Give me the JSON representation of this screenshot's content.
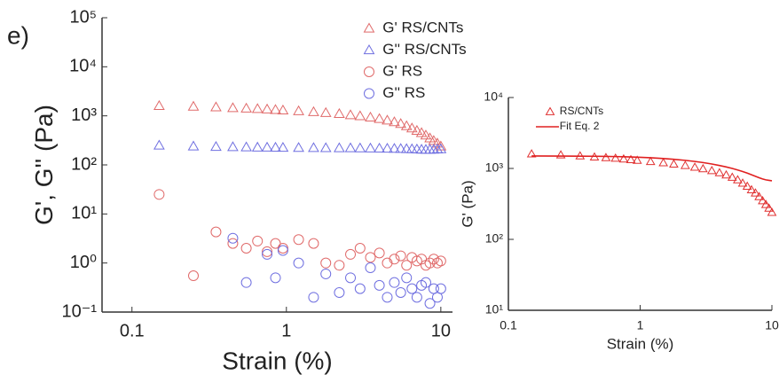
{
  "chart_data": [
    {
      "type": "scatter",
      "annotation": "e)",
      "xlabel": "Strain (%)",
      "ylabel": "G', G'' (Pa)",
      "xlog": true,
      "ylog": true,
      "xlim": [
        0.064,
        11.9
      ],
      "ylim": [
        0.1,
        100000
      ],
      "xticks": [
        0.1,
        1,
        10
      ],
      "yticks": [
        {
          "value": 0.1,
          "label": "10⁻¹"
        },
        {
          "value": 1,
          "label": "10⁰"
        },
        {
          "value": 10,
          "label": "10¹"
        },
        {
          "value": 100,
          "label": "10²"
        },
        {
          "value": 1000,
          "label": "10³"
        },
        {
          "value": 10000,
          "label": "10⁴"
        },
        {
          "value": 100000,
          "label": "10⁵"
        }
      ],
      "legend": "upper right",
      "x": [
        0.15,
        0.25,
        0.35,
        0.45,
        0.55,
        0.65,
        0.75,
        0.85,
        0.95,
        1.2,
        1.5,
        1.8,
        2.2,
        2.6,
        3,
        3.5,
        4,
        4.5,
        5,
        5.5,
        6,
        6.5,
        7,
        7.5,
        8,
        8.5,
        9,
        9.5,
        10
      ],
      "series": [
        {
          "name": "G' RS/CNTs",
          "color": "#e06a6a",
          "marker": "triangle",
          "values": [
            1600,
            1550,
            1500,
            1450,
            1420,
            1390,
            1360,
            1330,
            1300,
            1250,
            1200,
            1150,
            1100,
            1040,
            990,
            930,
            870,
            810,
            750,
            690,
            620,
            560,
            500,
            450,
            400,
            350,
            310,
            275,
            240
          ]
        },
        {
          "name": "G'' RS/CNTs",
          "color": "#6f6fe0",
          "marker": "triangle",
          "values": [
            250,
            240,
            235,
            232,
            230,
            228,
            227,
            226,
            225,
            224,
            223,
            222,
            221,
            220,
            219,
            218,
            217,
            216,
            215,
            214,
            212,
            210,
            208,
            206,
            205,
            205,
            206,
            208,
            210
          ]
        },
        {
          "name": "G' RS",
          "color": "#e06a6a",
          "marker": "circle",
          "values": [
            25,
            0.55,
            4.3,
            2.5,
            2,
            2.8,
            1.7,
            2.5,
            2,
            3,
            2.5,
            1,
            0.9,
            1.5,
            2,
            1.3,
            1.6,
            1,
            1.2,
            1.4,
            0.9,
            1.3,
            1.1,
            1.2,
            0.9,
            1,
            1.2,
            1,
            1.1
          ]
        },
        {
          "name": "G'' RS",
          "color": "#6f6fe0",
          "marker": "circle",
          "values": [
            null,
            null,
            null,
            3.2,
            0.4,
            null,
            1.5,
            0.5,
            1.8,
            1,
            0.2,
            0.6,
            0.25,
            0.5,
            0.3,
            0.8,
            0.35,
            0.2,
            0.4,
            0.25,
            0.5,
            0.3,
            0.2,
            0.35,
            0.4,
            0.15,
            0.3,
            0.2,
            0.3
          ]
        }
      ]
    },
    {
      "type": "scatter",
      "xlabel": "Strain (%)",
      "ylabel": "G' (Pa)",
      "xlog": true,
      "ylog": true,
      "xlim": [
        0.1,
        10
      ],
      "ylim": [
        10,
        10000
      ],
      "xticks": [
        0.1,
        1,
        10
      ],
      "yticks": [
        {
          "value": 10,
          "label": "10¹"
        },
        {
          "value": 100,
          "label": "10²"
        },
        {
          "value": 1000,
          "label": "10³"
        },
        {
          "value": 10000,
          "label": "10⁴"
        }
      ],
      "legend": "upper left",
      "x": [
        0.15,
        0.25,
        0.35,
        0.45,
        0.55,
        0.65,
        0.75,
        0.85,
        0.95,
        1.2,
        1.5,
        1.8,
        2.2,
        2.6,
        3,
        3.5,
        4,
        4.5,
        5,
        5.5,
        6,
        6.5,
        7,
        7.5,
        8,
        8.5,
        9,
        9.5,
        10
      ],
      "series": [
        {
          "name": "RS/CNTs",
          "color": "#e03030",
          "marker": "triangle",
          "values": [
            1600,
            1550,
            1500,
            1450,
            1420,
            1390,
            1360,
            1330,
            1300,
            1250,
            1200,
            1150,
            1100,
            1040,
            990,
            930,
            870,
            810,
            750,
            690,
            620,
            560,
            500,
            450,
            400,
            350,
            310,
            275,
            240
          ]
        },
        {
          "name": "Fit Eq. 2",
          "color": "#e02020",
          "marker": "line",
          "values": [
            1500,
            1495,
            1490,
            1485,
            1478,
            1470,
            1462,
            1452,
            1442,
            1415,
            1380,
            1345,
            1300,
            1255,
            1210,
            1155,
            1100,
            1050,
            1000,
            950,
            905,
            860,
            815,
            775,
            740,
            710,
            690,
            680,
            670
          ]
        }
      ]
    }
  ]
}
